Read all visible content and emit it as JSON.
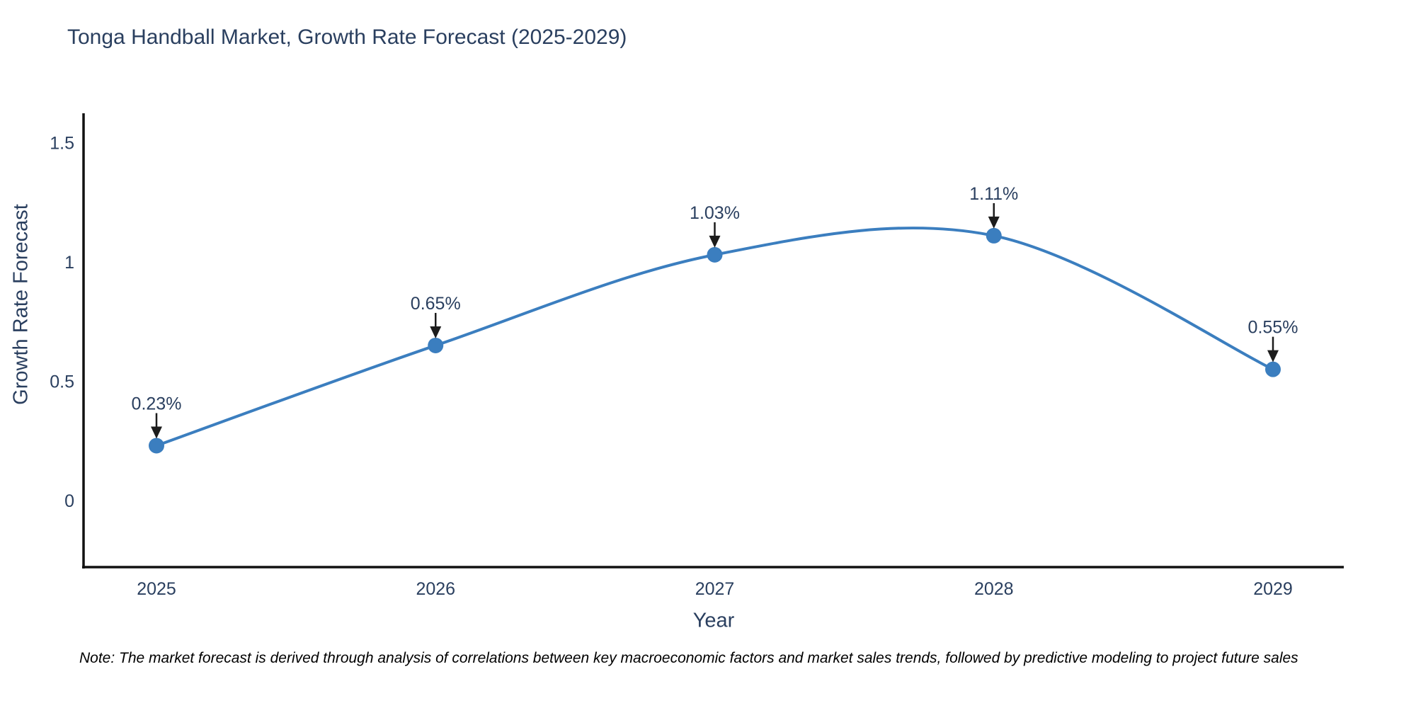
{
  "title": "Tonga Handball Market, Growth Rate Forecast (2025-2029)",
  "note": "Note: The market forecast is derived through analysis of correlations between key macroeconomic factors and market sales trends, followed by predictive modeling to project future sales",
  "chart_data": {
    "type": "line",
    "line_shape": "spline",
    "title": "Tonga Handball Market, Growth Rate Forecast (2025-2029)",
    "xlabel": "Year",
    "ylabel": "Growth Rate Forecast",
    "categories": [
      "2025",
      "2026",
      "2027",
      "2028",
      "2029"
    ],
    "values": [
      0.23,
      0.65,
      1.03,
      1.11,
      0.55
    ],
    "point_labels": [
      "0.23%",
      "0.65%",
      "1.03%",
      "1.11%",
      "0.55%"
    ],
    "yticks": [
      0,
      0.5,
      1,
      1.5
    ],
    "ytick_labels": [
      "0",
      "0.5",
      "1",
      "1.5"
    ],
    "ylim": [
      -0.28,
      1.9
    ],
    "grid": false,
    "legend": "none",
    "line_color": "#3b7ebf",
    "marker_color": "#3b7ebf",
    "axis_color": "#111111",
    "text_color": "#2a3f5f",
    "annotation_color": "#2a3f5f",
    "arrow_color": "#1c1c1c"
  }
}
